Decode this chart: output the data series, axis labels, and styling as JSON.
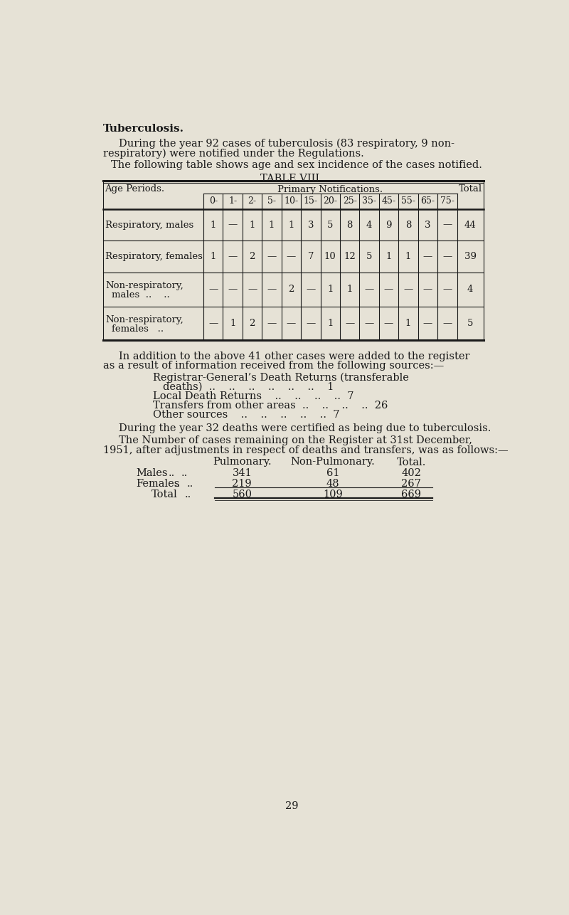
{
  "bg_color": "#e6e2d6",
  "text_color": "#1a1a1a",
  "title": "Tuberculosis.",
  "para1_line1": "During the year 92 cases of tuberculosis (83 respiratory, 9 non-",
  "para1_line2": "respiratory) were notified under the Regulations.",
  "para2": "The following table shows age and sex incidence of the cases notified.",
  "table_title": "TABLE VIII.",
  "col_header_main": "Primary Notifications.",
  "col_header_ages": [
    "0-",
    "1-",
    "2-",
    "5-",
    "10-",
    "15-",
    "20-",
    "25-",
    "35-",
    "45-",
    "55-",
    "65-",
    "75-"
  ],
  "col_header_left": "Age Periods.",
  "col_header_right": "Total",
  "table_data": [
    {
      "label1": "Respiratory, males",
      "label2": null,
      "vals": [
        "1",
        "—",
        "1",
        "1",
        "1",
        "3",
        "5",
        "8",
        "4",
        "9",
        "8",
        "3",
        "—"
      ],
      "total": "44"
    },
    {
      "label1": "Respiratory, females",
      "label2": null,
      "vals": [
        "1",
        "—",
        "2",
        "—",
        "—",
        "7",
        "10",
        "12",
        "5",
        "1",
        "1",
        "—",
        "—"
      ],
      "total": "39"
    },
    {
      "label1": "Non-respiratory,",
      "label2": "males  ..    ..",
      "vals": [
        "—",
        "—",
        "—",
        "—",
        "2",
        "—",
        "1",
        "1",
        "—",
        "—",
        "—",
        "—",
        "—"
      ],
      "total": "4"
    },
    {
      "label1": "Non-respiratory,",
      "label2": "females   ..",
      "vals": [
        "—",
        "1",
        "2",
        "—",
        "—",
        "—",
        "1",
        "—",
        "—",
        "—",
        "1",
        "—",
        "—"
      ],
      "total": "5"
    }
  ],
  "addition_line1": "In addition to the above 41 other cases were added to the register",
  "addition_line2": "as a result of information received from the following sources:—",
  "src1a": "Registrar-General’s Death Returns (transferable",
  "src1b": "deaths)  ..    ..    ..    ..    ..    ..    1",
  "src2": "Local Death Returns    ..    ..    ..    ..  7",
  "src3": "Transfers from other areas  ..    ..    ..    ..  26",
  "src4": "Other sources    ..    ..    ..    ..    ..  7",
  "deaths_text": "During the year 32 deaths were certified as being due to tuberculosis.",
  "reg_text1": "The Number of cases remaining on the Register at 31st December,",
  "reg_text2": "1951, after adjustments in respect of deaths and transfers, was as follows:—",
  "reg_hdr": [
    "Pulmonary.",
    "Non-Pulmonary.",
    "Total."
  ],
  "reg_males": [
    "Males",
    "..",
    "..",
    "341",
    "61",
    "402"
  ],
  "reg_females": [
    "Females",
    "..",
    "..",
    "219",
    "48",
    "267"
  ],
  "reg_total": [
    "Total",
    "..",
    "560",
    "109",
    "669"
  ],
  "page_number": "29"
}
